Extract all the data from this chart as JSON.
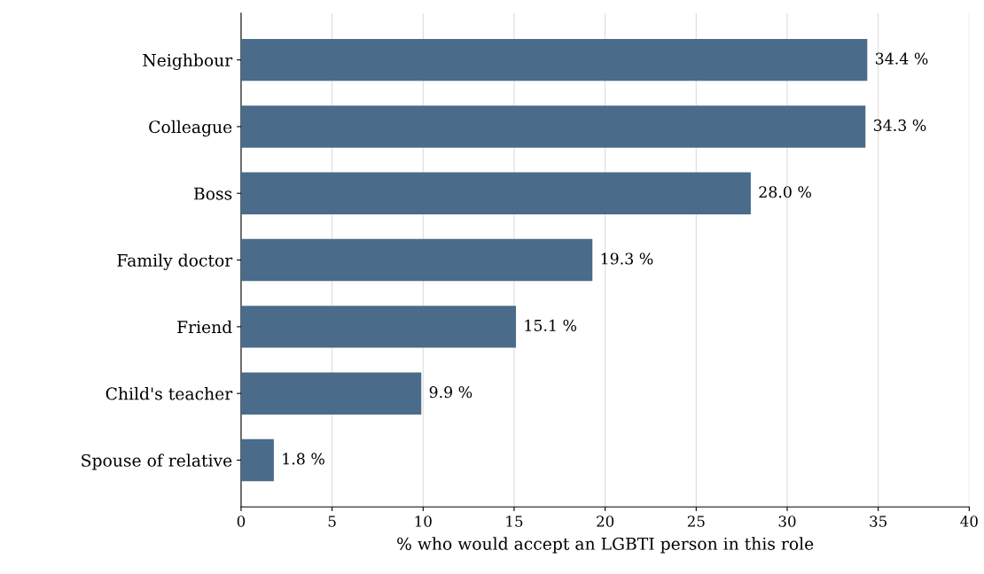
{
  "chart_data": {
    "type": "bar",
    "orientation": "horizontal",
    "xlabel": "% who would accept an LGBTI person in this role",
    "categories": [
      "Neighbour",
      "Colleague",
      "Boss",
      "Family doctor",
      "Friend",
      "Child's teacher",
      "Spouse of relative"
    ],
    "values": [
      34.4,
      34.3,
      28.0,
      19.3,
      15.1,
      9.9,
      1.8
    ],
    "value_labels": [
      "34.4 %",
      "34.3 %",
      "28.0 %",
      "19.3 %",
      "15.1 %",
      "9.9 %",
      "1.8 %"
    ],
    "color": "#4a6b8a",
    "xlim": [
      0,
      40
    ],
    "xticks": [
      0,
      5,
      10,
      15,
      20,
      25,
      30,
      35,
      40
    ],
    "grid": "x",
    "legend": false
  }
}
